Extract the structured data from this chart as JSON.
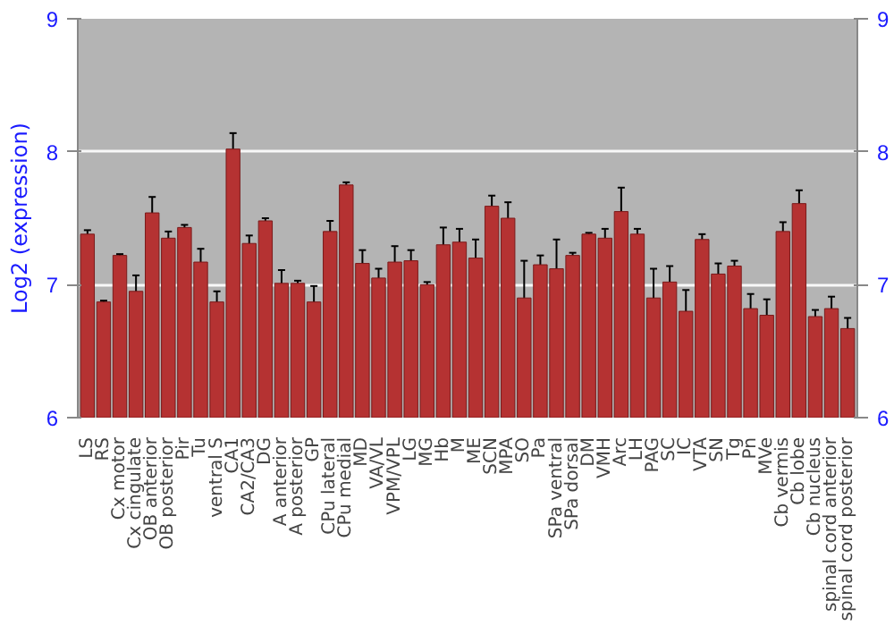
{
  "chart_data": {
    "type": "bar",
    "ylabel": "Log2 (expression)",
    "categories": [
      "LS",
      "RS",
      "Cx motor",
      "Cx cingulate",
      "OB anterior",
      "OB posterior",
      "Pir",
      "Tu",
      "ventral S",
      "CA1",
      "CA2/CA3",
      "DG",
      "A anterior",
      "A posterior",
      "GP",
      "CPu lateral",
      "CPu medial",
      "MD",
      "VA/VL",
      "VPM/VPL",
      "LG",
      "MG",
      "Hb",
      "M",
      "ME",
      "SCN",
      "MPA",
      "SO",
      "Pa",
      "SPa ventral",
      "SPa dorsal",
      "DM",
      "VMH",
      "Arc",
      "LH",
      "PAG",
      "SC",
      "IC",
      "VTA",
      "SN",
      "Tg",
      "Pn",
      "MVe",
      "Cb vermis",
      "Cb lobe",
      "Cb nucleus",
      "spinal cord anterior",
      "spinal cord posterior"
    ],
    "values": [
      7.38,
      6.87,
      7.22,
      6.95,
      7.54,
      7.35,
      7.43,
      7.17,
      6.87,
      8.02,
      7.31,
      7.48,
      7.01,
      7.01,
      6.87,
      7.4,
      7.75,
      7.16,
      7.05,
      7.17,
      7.18,
      7.0,
      7.3,
      7.32,
      7.2,
      7.59,
      7.5,
      6.9,
      7.15,
      7.12,
      7.22,
      7.38,
      7.35,
      7.55,
      7.38,
      6.9,
      7.02,
      6.8,
      7.34,
      7.08,
      7.14,
      6.82,
      6.77,
      7.4,
      7.61,
      6.76,
      6.82,
      6.67
    ],
    "errors": [
      0.03,
      0.01,
      0.01,
      0.12,
      0.12,
      0.05,
      0.02,
      0.1,
      0.08,
      0.12,
      0.06,
      0.02,
      0.1,
      0.02,
      0.12,
      0.08,
      0.02,
      0.1,
      0.07,
      0.12,
      0.08,
      0.02,
      0.13,
      0.1,
      0.14,
      0.08,
      0.12,
      0.28,
      0.07,
      0.22,
      0.02,
      0.01,
      0.07,
      0.18,
      0.04,
      0.22,
      0.12,
      0.16,
      0.04,
      0.08,
      0.04,
      0.11,
      0.12,
      0.07,
      0.1,
      0.05,
      0.09,
      0.08
    ],
    "color": "#b53232",
    "ylim": [
      6,
      9
    ],
    "yticks": [
      6,
      7,
      8,
      9
    ],
    "y2lim": [
      6,
      9
    ],
    "y2ticks": [
      6,
      7,
      8,
      9
    ],
    "grid": "y"
  }
}
